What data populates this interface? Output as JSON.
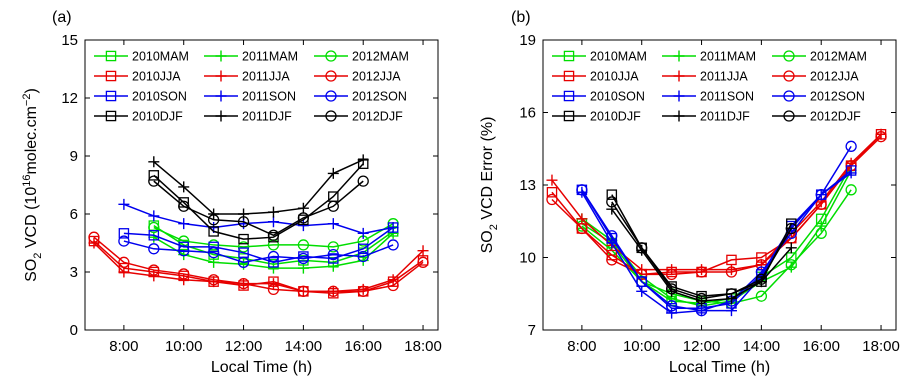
{
  "chart_data": [
    {
      "type": "line",
      "panel_label": "(a)",
      "xlabel": "Local Time (h)",
      "ylabel_main": "SO",
      "ylabel_sub": "2",
      "ylabel_rest": " VCD (10",
      "ylabel_sup1": "16",
      "ylabel_mid": "molec.cm",
      "ylabel_sup2": "−2",
      "ylabel_end": ")",
      "xlim": [
        6.7,
        18.5
      ],
      "ylim": [
        0,
        15
      ],
      "xticks": [
        8,
        10,
        12,
        14,
        16,
        18
      ],
      "xtick_labels": [
        "8:00",
        "10:00",
        "12:00",
        "14:00",
        "16:00",
        "18:00"
      ],
      "yticks": [
        0,
        3,
        6,
        9,
        12,
        15
      ],
      "ytick_labels": [
        "0",
        "3",
        "6",
        "9",
        "12",
        "15"
      ],
      "legend_position": "top-left",
      "series": [
        {
          "name": "2010MAM",
          "color": "#00dd00",
          "marker": "square",
          "x": [
            9,
            10,
            11,
            12,
            13,
            14,
            15,
            16,
            17
          ],
          "y": [
            5.4,
            4.4,
            3.9,
            3.7,
            3.4,
            3.6,
            3.5,
            4.0,
            5.1
          ]
        },
        {
          "name": "2011MAM",
          "color": "#00dd00",
          "marker": "plus",
          "x": [
            9,
            10,
            11,
            12,
            13,
            14,
            15,
            16,
            17
          ],
          "y": [
            4.8,
            3.9,
            3.5,
            3.4,
            3.2,
            3.2,
            3.3,
            3.6,
            5.0
          ]
        },
        {
          "name": "2012MAM",
          "color": "#00dd00",
          "marker": "circle",
          "x": [
            9,
            10,
            11,
            12,
            13,
            14,
            15,
            16,
            17
          ],
          "y": [
            5.3,
            4.6,
            4.4,
            4.3,
            4.4,
            4.4,
            4.3,
            4.6,
            5.5
          ]
        },
        {
          "name": "2010JJA",
          "color": "#e60000",
          "marker": "square",
          "x": [
            7,
            8,
            9,
            10,
            11,
            12,
            13,
            14,
            15,
            16,
            17,
            18
          ],
          "y": [
            4.6,
            3.2,
            3.0,
            2.8,
            2.5,
            2.3,
            2.5,
            2.0,
            1.9,
            2.0,
            2.5,
            3.6
          ]
        },
        {
          "name": "2011JJA",
          "color": "#e60000",
          "marker": "plus",
          "x": [
            7,
            8,
            9,
            10,
            11,
            12,
            13,
            14,
            15,
            16,
            17,
            18
          ],
          "y": [
            4.5,
            3.0,
            2.8,
            2.6,
            2.5,
            2.4,
            2.4,
            2.0,
            2.0,
            2.1,
            2.6,
            4.1
          ]
        },
        {
          "name": "2012JJA",
          "color": "#e60000",
          "marker": "circle",
          "x": [
            7,
            8,
            9,
            10,
            11,
            12,
            13,
            14,
            15,
            16,
            17,
            18
          ],
          "y": [
            4.8,
            3.5,
            3.1,
            2.9,
            2.6,
            2.4,
            2.1,
            2.0,
            2.0,
            2.0,
            2.3,
            3.5
          ]
        },
        {
          "name": "2010SON",
          "color": "#0000ee",
          "marker": "square",
          "x": [
            8,
            9,
            10,
            11,
            12,
            13,
            14,
            15,
            16,
            17
          ],
          "y": [
            5.0,
            4.9,
            4.3,
            4.3,
            4.0,
            3.5,
            3.8,
            3.7,
            4.2,
            5.3
          ]
        },
        {
          "name": "2011SON",
          "color": "#0000ee",
          "marker": "plus",
          "x": [
            8,
            9,
            10,
            11,
            12,
            13,
            14,
            15,
            16,
            17
          ],
          "y": [
            6.5,
            5.9,
            5.5,
            5.3,
            5.5,
            5.6,
            5.4,
            5.5,
            5.0,
            5.3
          ]
        },
        {
          "name": "2012SON",
          "color": "#0000ee",
          "marker": "circle",
          "x": [
            8,
            9,
            10,
            11,
            12,
            13,
            14,
            15,
            16,
            17
          ],
          "y": [
            4.6,
            4.2,
            4.1,
            4.0,
            3.5,
            3.8,
            3.7,
            3.9,
            3.8,
            4.4
          ]
        },
        {
          "name": "2010DJF",
          "color": "#000000",
          "marker": "square",
          "x": [
            9,
            10,
            11,
            12,
            13,
            14,
            15,
            16
          ],
          "y": [
            8.0,
            6.6,
            5.1,
            4.7,
            4.8,
            5.7,
            6.9,
            8.6
          ]
        },
        {
          "name": "2011DJF",
          "color": "#000000",
          "marker": "plus",
          "x": [
            9,
            10,
            11,
            12,
            13,
            14,
            15,
            16
          ],
          "y": [
            8.7,
            7.4,
            6.0,
            6.0,
            6.1,
            6.3,
            8.1,
            8.8
          ]
        },
        {
          "name": "2012DJF",
          "color": "#000000",
          "marker": "circle",
          "x": [
            9,
            10,
            11,
            12,
            13,
            14,
            15,
            16
          ],
          "y": [
            7.7,
            6.4,
            5.7,
            5.6,
            4.9,
            5.8,
            6.4,
            7.7
          ]
        }
      ]
    },
    {
      "type": "line",
      "panel_label": "(b)",
      "xlabel": "Local Time (h)",
      "ylabel_main": "SO",
      "ylabel_sub": "2",
      "ylabel_rest": " VCD Error (%)",
      "xlim": [
        6.7,
        18.5
      ],
      "ylim": [
        7,
        19
      ],
      "xticks": [
        8,
        10,
        12,
        14,
        16,
        18
      ],
      "xtick_labels": [
        "8:00",
        "10:00",
        "12:00",
        "14:00",
        "16:00",
        "18:00"
      ],
      "yticks": [
        7,
        10,
        13,
        16,
        19
      ],
      "ytick_labels": [
        "7",
        "10",
        "13",
        "16",
        "19"
      ],
      "legend_position": "top-left",
      "series": [
        {
          "name": "2010MAM",
          "color": "#00dd00",
          "marker": "square",
          "x": [
            8,
            9,
            10,
            11,
            12,
            13,
            14,
            15,
            16,
            17
          ],
          "y": [
            11.4,
            10.6,
            9.0,
            8.2,
            8.1,
            8.3,
            9.2,
            10.0,
            11.6,
            13.8
          ]
        },
        {
          "name": "2011MAM",
          "color": "#00dd00",
          "marker": "plus",
          "x": [
            8,
            9,
            10,
            11,
            12,
            13,
            14,
            15,
            16,
            17
          ],
          "y": [
            11.6,
            10.7,
            9.2,
            8.3,
            8.0,
            8.2,
            9.0,
            9.6,
            11.3,
            13.6
          ]
        },
        {
          "name": "2012MAM",
          "color": "#00dd00",
          "marker": "circle",
          "x": [
            8,
            9,
            10,
            11,
            12,
            13,
            14,
            15,
            16,
            17
          ],
          "y": [
            11.3,
            10.3,
            9.0,
            8.5,
            8.2,
            8.1,
            8.4,
            9.7,
            11.0,
            12.8
          ]
        },
        {
          "name": "2010JJA",
          "color": "#e60000",
          "marker": "square",
          "x": [
            7,
            8,
            9,
            10,
            11,
            12,
            13,
            14,
            15,
            16,
            17,
            18
          ],
          "y": [
            12.7,
            11.2,
            10.1,
            9.3,
            9.4,
            9.4,
            9.9,
            10.0,
            10.8,
            12.2,
            13.8,
            15.1
          ]
        },
        {
          "name": "2011JJA",
          "color": "#e60000",
          "marker": "plus",
          "x": [
            7,
            8,
            9,
            10,
            11,
            12,
            13,
            14,
            15,
            16,
            17,
            18
          ],
          "y": [
            13.2,
            11.6,
            10.5,
            9.5,
            9.5,
            9.5,
            9.5,
            9.7,
            11.0,
            12.3,
            13.9,
            15.1
          ]
        },
        {
          "name": "2012JJA",
          "color": "#e60000",
          "marker": "circle",
          "x": [
            7,
            8,
            9,
            10,
            11,
            12,
            13,
            14,
            15,
            16,
            17,
            18
          ],
          "y": [
            12.4,
            11.2,
            9.9,
            9.3,
            9.3,
            9.4,
            9.4,
            9.7,
            10.8,
            12.2,
            13.8,
            15.0
          ]
        },
        {
          "name": "2010SON",
          "color": "#0000ee",
          "marker": "square",
          "x": [
            8,
            9,
            10,
            11,
            12,
            13,
            14,
            15,
            16,
            17
          ],
          "y": [
            12.8,
            10.8,
            9.0,
            7.9,
            7.9,
            8.1,
            9.3,
            11.3,
            12.6,
            13.6
          ]
        },
        {
          "name": "2011SON",
          "color": "#0000ee",
          "marker": "plus",
          "x": [
            8,
            9,
            10,
            11,
            12,
            13,
            14,
            15,
            16,
            17
          ],
          "y": [
            12.7,
            10.6,
            8.6,
            7.7,
            7.8,
            7.8,
            9.2,
            11.2,
            12.6,
            13.5
          ]
        },
        {
          "name": "2012SON",
          "color": "#0000ee",
          "marker": "circle",
          "x": [
            8,
            9,
            10,
            11,
            12,
            13,
            14,
            15,
            16,
            17
          ],
          "y": [
            12.8,
            10.9,
            9.0,
            8.0,
            7.8,
            8.2,
            9.4,
            11.0,
            12.6,
            14.6
          ]
        },
        {
          "name": "2010DJF",
          "color": "#000000",
          "marker": "square",
          "x": [
            9,
            10,
            11,
            12,
            13,
            14,
            15
          ],
          "y": [
            12.6,
            10.4,
            8.8,
            8.4,
            8.5,
            9.0,
            11.4
          ]
        },
        {
          "name": "2011DJF",
          "color": "#000000",
          "marker": "plus",
          "x": [
            9,
            10,
            11,
            12,
            13,
            14,
            15
          ],
          "y": [
            12.0,
            10.3,
            8.6,
            8.2,
            8.3,
            9.0,
            10.4
          ]
        },
        {
          "name": "2012DJF",
          "color": "#000000",
          "marker": "circle",
          "x": [
            9,
            10,
            11,
            12,
            13,
            14,
            15
          ],
          "y": [
            12.3,
            10.4,
            8.7,
            8.3,
            8.5,
            9.1,
            11.2
          ]
        }
      ]
    }
  ]
}
